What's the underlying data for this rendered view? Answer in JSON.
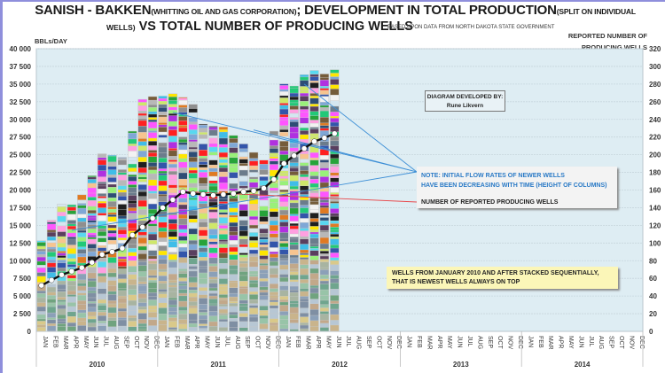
{
  "header": {
    "title_line1_main": "SANISH - BAKKEN",
    "title_line1_sub": "(WHITTING OIL AND GAS CORPORATION)",
    "title_line1_main2": "; DEVELOPMENT IN TOTAL PRODUCTION",
    "title_line1_sub2": "(SPLIT ON INDIVIDUAL",
    "title_line2_sub": "WELLS)",
    "title_line2_main": " VS TOTAL NUMBER OF PRODUCING WELLS",
    "source": "BASED UPON DATA FROM NORTH DAKOTA STATE GOVERNMENT"
  },
  "annotations": {
    "credit_line1": "DIAGRAM DEVELOPED BY:",
    "credit_line2": "Rune Likvern",
    "note_prefix": "NOTE: ",
    "note_line1": "INITIAL FLOW RATES OF NEWER WELLS",
    "note_line2": "HAVE BEEN DECREASING WITH TIME (HEIGHT OF COLUMNS)",
    "wells_label": "NUMBER OF REPORTED PRODUCING WELLS",
    "stack_line1": "WELLS FROM JANUARY 2010  AND AFTER STACKED SEQUENTIALLY,",
    "stack_line2": "THAT IS NEWEST WELLS ALWAYS ON TOP"
  },
  "colors": {
    "plot_bg": "#deedf3",
    "wells_line": "#111111",
    "wells_marker": "#ffffff",
    "note_arrow": "#3d8fd6",
    "wells_arrow": "#e8474a",
    "frame": "#8f8fdc"
  },
  "chart_data": {
    "type": "bar",
    "title": "SANISH - BAKKEN (WHITTING OIL AND GAS CORPORATION); DEVELOPMENT IN TOTAL PRODUCTION (SPLIT ON INDIVIDUAL WELLS) VS TOTAL NUMBER OF PRODUCING WELLS",
    "ylabel": "BBLs/DAY",
    "y2label": "REPORTED NUMBER OF PRODUCING WELLS",
    "ylim": [
      0,
      40000
    ],
    "y2lim": [
      0,
      320
    ],
    "yticks": [
      "0",
      "2 500",
      "5 000",
      "7 500",
      "10 000",
      "12 500",
      "15 000",
      "17 500",
      "20 000",
      "22 500",
      "25 000",
      "27 500",
      "30 000",
      "32 500",
      "35 000",
      "37 500",
      "40 000"
    ],
    "y2ticks": [
      "0",
      "20",
      "40",
      "60",
      "80",
      "100",
      "120",
      "140",
      "160",
      "180",
      "200",
      "220",
      "240",
      "260",
      "280",
      "300",
      "320"
    ],
    "months": [
      "JAN",
      "FEB",
      "MAR",
      "APR",
      "MAY",
      "JUN",
      "JUL",
      "AUG",
      "SEP",
      "OCT",
      "NOV",
      "DEC"
    ],
    "years": [
      "2010",
      "2011",
      "2012",
      "2013",
      "2014"
    ],
    "grid": true,
    "series": [
      {
        "name": "Total production (stacked by individual wells)",
        "type": "stacked-bar",
        "values": [
          12800,
          15700,
          18000,
          17900,
          19300,
          22000,
          25100,
          24900,
          24600,
          28300,
          32800,
          33200,
          33300,
          33600,
          33100,
          32100,
          29300,
          29000,
          28900,
          27700,
          26500,
          25300,
          24200,
          28300,
          35000,
          34700,
          36300,
          36900,
          36400,
          37000
        ]
      },
      {
        "name": "Number of reported producing wells",
        "type": "line",
        "axis": "right",
        "values": [
          52,
          58,
          64,
          68,
          72,
          78,
          87,
          90,
          94,
          109,
          118,
          128,
          140,
          149,
          158,
          156,
          155,
          154,
          155,
          156,
          158,
          159,
          162,
          172,
          190,
          199,
          207,
          215,
          219,
          224
        ]
      }
    ]
  }
}
